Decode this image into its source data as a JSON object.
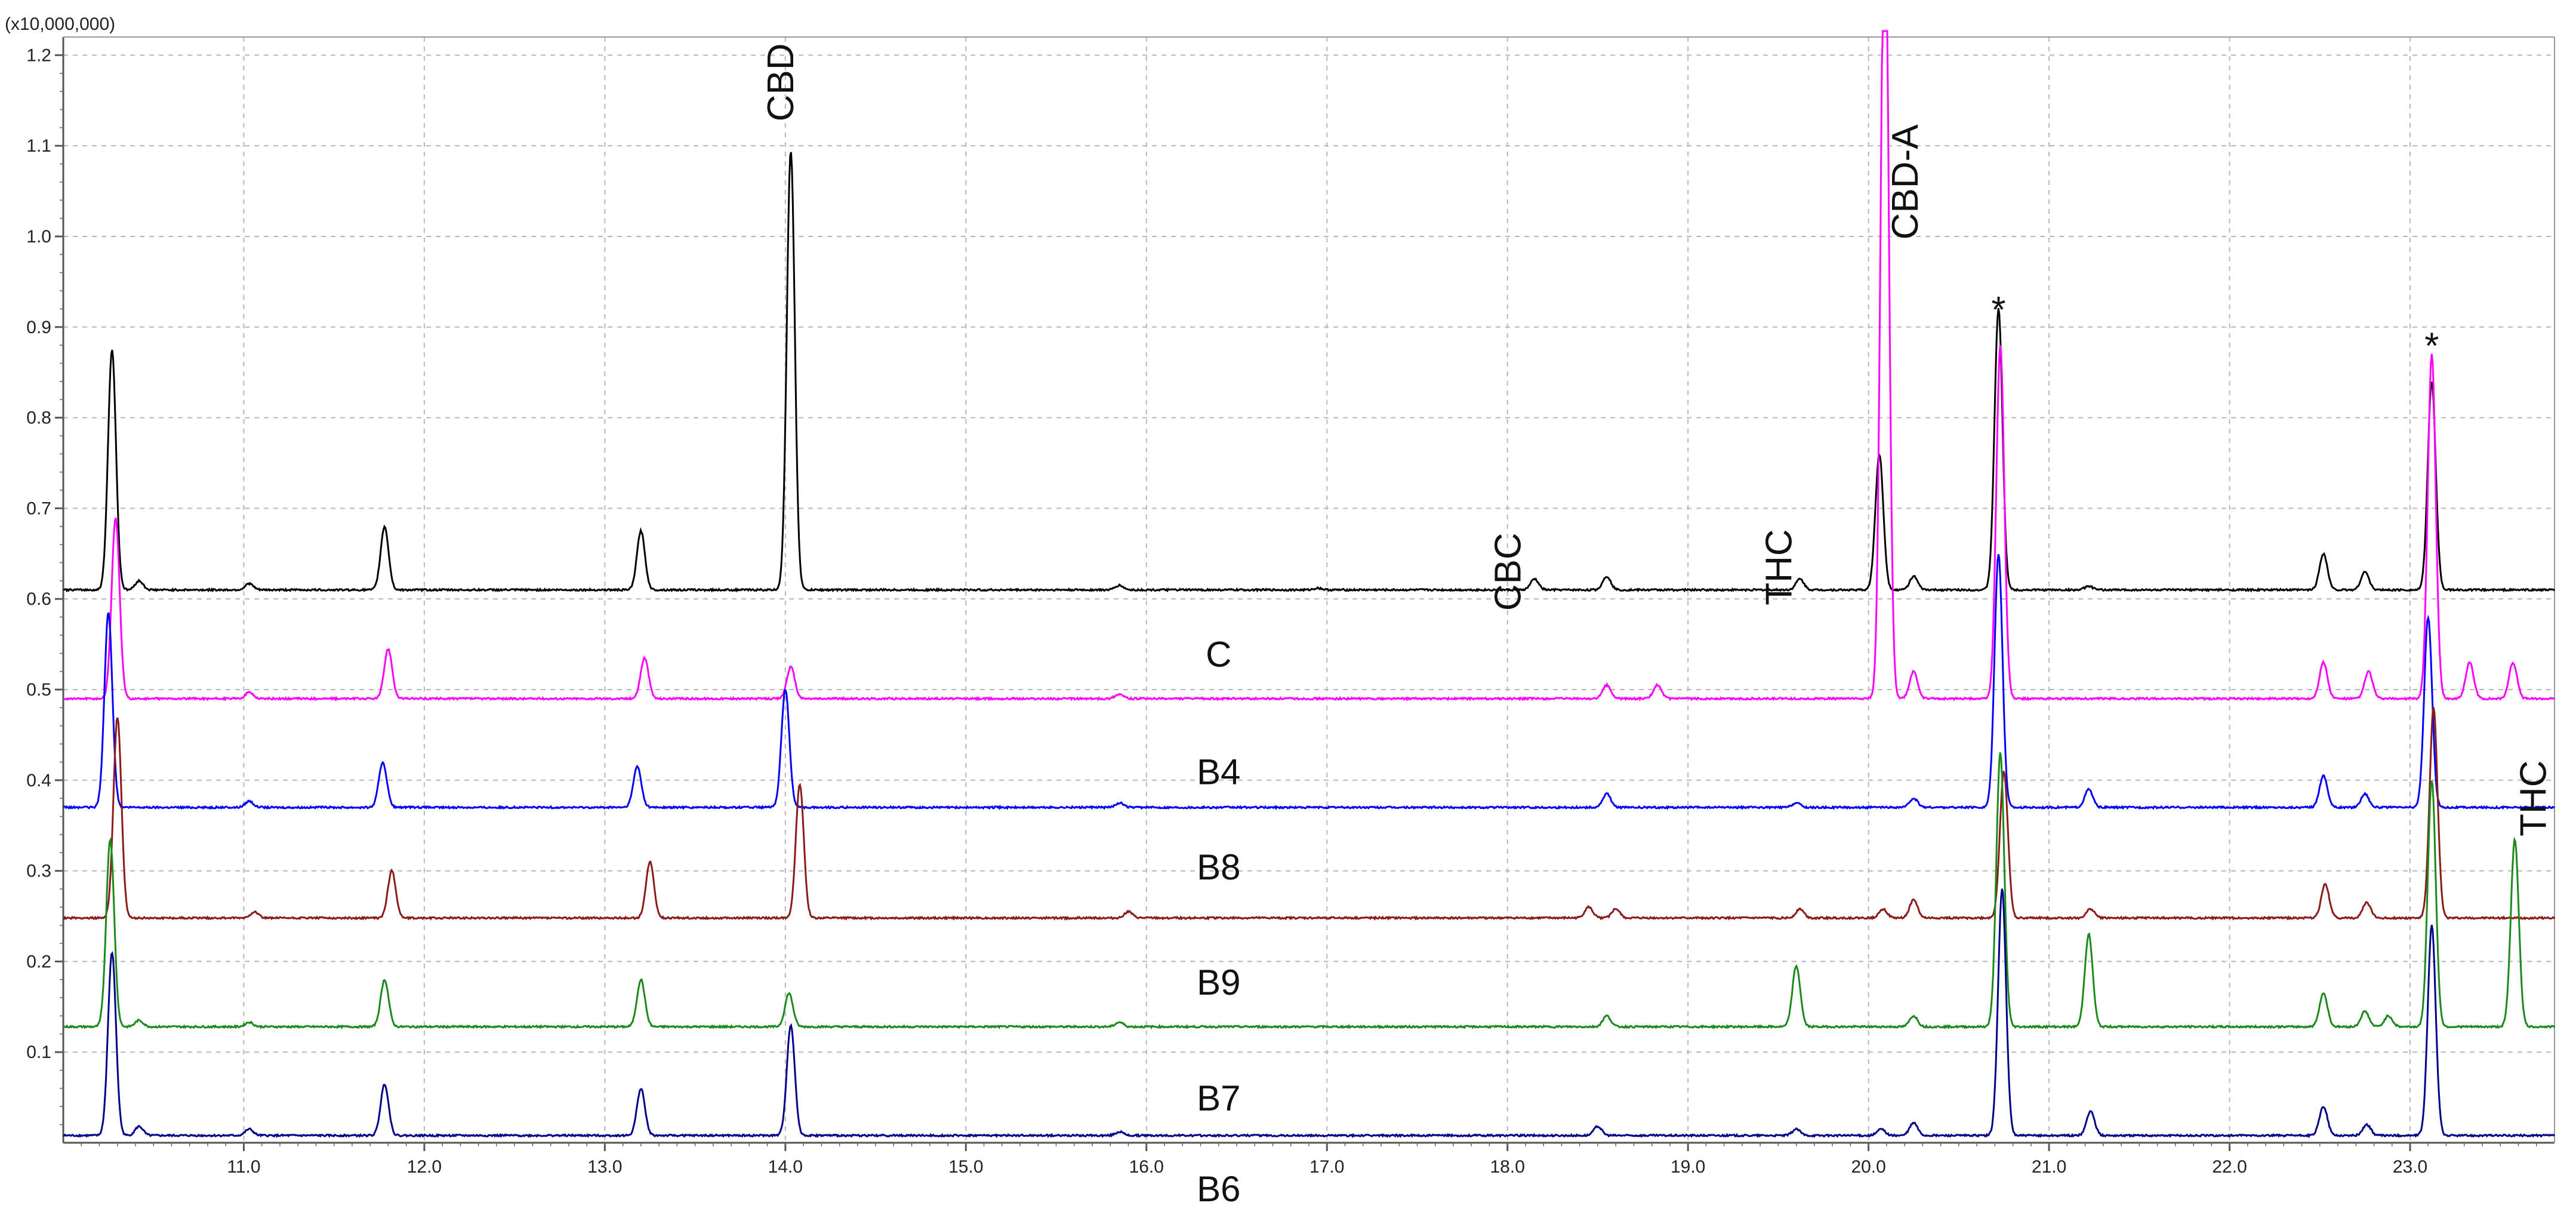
{
  "chart_data": {
    "type": "line",
    "title": "",
    "xlabel": "",
    "ylabel": "",
    "y_multiplier_label": "(x10,000,000)",
    "xlim": [
      10.0,
      23.8
    ],
    "ylim": [
      0.0,
      1.22
    ],
    "xticks": [
      "11.0",
      "12.0",
      "13.0",
      "14.0",
      "15.0",
      "16.0",
      "17.0",
      "18.0",
      "19.0",
      "20.0",
      "21.0",
      "22.0",
      "23.0"
    ],
    "xtick_values": [
      11,
      12,
      13,
      14,
      15,
      16,
      17,
      18,
      19,
      20,
      21,
      22,
      23
    ],
    "yticks": [
      "0.1",
      "0.2",
      "0.3",
      "0.4",
      "0.5",
      "0.6",
      "0.7",
      "0.8",
      "0.9",
      "1.0",
      "1.1",
      "1.2"
    ],
    "ytick_values": [
      0.1,
      0.2,
      0.3,
      0.4,
      0.5,
      0.6,
      0.7,
      0.8,
      0.9,
      1.0,
      1.1,
      1.2
    ],
    "grid": true,
    "series": [
      {
        "name": "",
        "label": "C",
        "color": "#000000",
        "baseline": 0.61,
        "label_pos": [
          16.4,
          0.54
        ],
        "peaks": [
          [
            10.27,
            0.875
          ],
          [
            10.42,
            0.62
          ],
          [
            11.03,
            0.617
          ],
          [
            11.78,
            0.68
          ],
          [
            13.2,
            0.675
          ],
          [
            14.03,
            1.095
          ],
          [
            15.85,
            0.615
          ],
          [
            16.95,
            0.612
          ],
          [
            18.15,
            0.622
          ],
          [
            18.55,
            0.625
          ],
          [
            19.62,
            0.622
          ],
          [
            20.06,
            0.76
          ],
          [
            20.25,
            0.625
          ],
          [
            20.72,
            0.92
          ],
          [
            21.22,
            0.614
          ],
          [
            22.52,
            0.65
          ],
          [
            22.75,
            0.63
          ],
          [
            23.12,
            0.84
          ]
        ]
      },
      {
        "name": "",
        "label": "B4",
        "color": "#ff00ff",
        "baseline": 0.49,
        "label_pos": [
          16.4,
          0.41
        ],
        "peaks": [
          [
            10.29,
            0.69
          ],
          [
            11.03,
            0.497
          ],
          [
            11.8,
            0.545
          ],
          [
            13.22,
            0.535
          ],
          [
            14.03,
            0.525
          ],
          [
            15.85,
            0.495
          ],
          [
            18.55,
            0.505
          ],
          [
            18.83,
            0.505
          ],
          [
            20.09,
            1.4
          ],
          [
            20.25,
            0.52
          ],
          [
            20.73,
            0.88
          ],
          [
            22.52,
            0.53
          ],
          [
            22.77,
            0.52
          ],
          [
            23.12,
            0.87
          ],
          [
            23.33,
            0.53
          ],
          [
            23.57,
            0.53
          ]
        ]
      },
      {
        "name": "",
        "label": "B8",
        "color": "#0000ff",
        "baseline": 0.37,
        "label_pos": [
          16.4,
          0.305
        ],
        "peaks": [
          [
            10.25,
            0.585
          ],
          [
            11.03,
            0.377
          ],
          [
            11.77,
            0.42
          ],
          [
            13.18,
            0.415
          ],
          [
            14.0,
            0.5
          ],
          [
            15.85,
            0.375
          ],
          [
            18.55,
            0.385
          ],
          [
            19.6,
            0.375
          ],
          [
            20.25,
            0.38
          ],
          [
            20.72,
            0.65
          ],
          [
            21.22,
            0.39
          ],
          [
            22.52,
            0.405
          ],
          [
            22.75,
            0.385
          ],
          [
            23.1,
            0.58
          ]
        ]
      },
      {
        "name": "",
        "label": "B9",
        "color": "#8b1a1a",
        "baseline": 0.248,
        "label_pos": [
          16.4,
          0.178
        ],
        "peaks": [
          [
            10.3,
            0.47
          ],
          [
            11.06,
            0.255
          ],
          [
            11.82,
            0.3
          ],
          [
            13.25,
            0.31
          ],
          [
            14.08,
            0.395
          ],
          [
            15.9,
            0.255
          ],
          [
            18.45,
            0.26
          ],
          [
            18.6,
            0.258
          ],
          [
            19.62,
            0.258
          ],
          [
            20.08,
            0.258
          ],
          [
            20.25,
            0.268
          ],
          [
            20.75,
            0.41
          ],
          [
            21.23,
            0.258
          ],
          [
            22.53,
            0.285
          ],
          [
            22.76,
            0.265
          ],
          [
            23.13,
            0.48
          ]
        ]
      },
      {
        "name": "",
        "label": "B7",
        "color": "#1a8a1a",
        "baseline": 0.128,
        "label_pos": [
          16.4,
          0.05
        ],
        "peaks": [
          [
            10.26,
            0.335
          ],
          [
            10.42,
            0.135
          ],
          [
            11.03,
            0.133
          ],
          [
            11.78,
            0.18
          ],
          [
            13.2,
            0.18
          ],
          [
            14.02,
            0.165
          ],
          [
            15.85,
            0.133
          ],
          [
            18.55,
            0.14
          ],
          [
            19.6,
            0.195
          ],
          [
            20.25,
            0.14
          ],
          [
            20.73,
            0.43
          ],
          [
            21.22,
            0.23
          ],
          [
            22.52,
            0.165
          ],
          [
            22.75,
            0.145
          ],
          [
            22.88,
            0.14
          ],
          [
            23.12,
            0.4
          ],
          [
            23.58,
            0.335
          ]
        ]
      },
      {
        "name": "",
        "label": "B6",
        "color": "#00008b",
        "baseline": 0.008,
        "label_pos": [
          16.4,
          -0.05
        ],
        "peaks": [
          [
            10.27,
            0.21
          ],
          [
            10.42,
            0.018
          ],
          [
            11.03,
            0.015
          ],
          [
            11.78,
            0.065
          ],
          [
            13.2,
            0.06
          ],
          [
            14.03,
            0.13
          ],
          [
            15.85,
            0.012
          ],
          [
            18.5,
            0.018
          ],
          [
            19.6,
            0.015
          ],
          [
            20.07,
            0.015
          ],
          [
            20.25,
            0.022
          ],
          [
            20.74,
            0.28
          ],
          [
            21.23,
            0.035
          ],
          [
            22.52,
            0.04
          ],
          [
            22.76,
            0.02
          ],
          [
            23.12,
            0.24
          ]
        ]
      }
    ],
    "annotations": [
      {
        "text": "CBD",
        "x": 13.97,
        "y": 1.17,
        "rotate": true
      },
      {
        "text": "CBC",
        "x": 18.0,
        "y": 0.63,
        "rotate": true
      },
      {
        "text": "THC",
        "x": 19.5,
        "y": 0.635,
        "rotate": true
      },
      {
        "text": "CBD-A",
        "x": 20.2,
        "y": 1.06,
        "rotate": true
      },
      {
        "text": "*",
        "x": 20.72,
        "y": 0.925,
        "rotate": false
      },
      {
        "text": "*",
        "x": 23.12,
        "y": 0.885,
        "rotate": false
      },
      {
        "text": "THC",
        "x": 23.68,
        "y": 0.38,
        "rotate": true
      }
    ]
  }
}
